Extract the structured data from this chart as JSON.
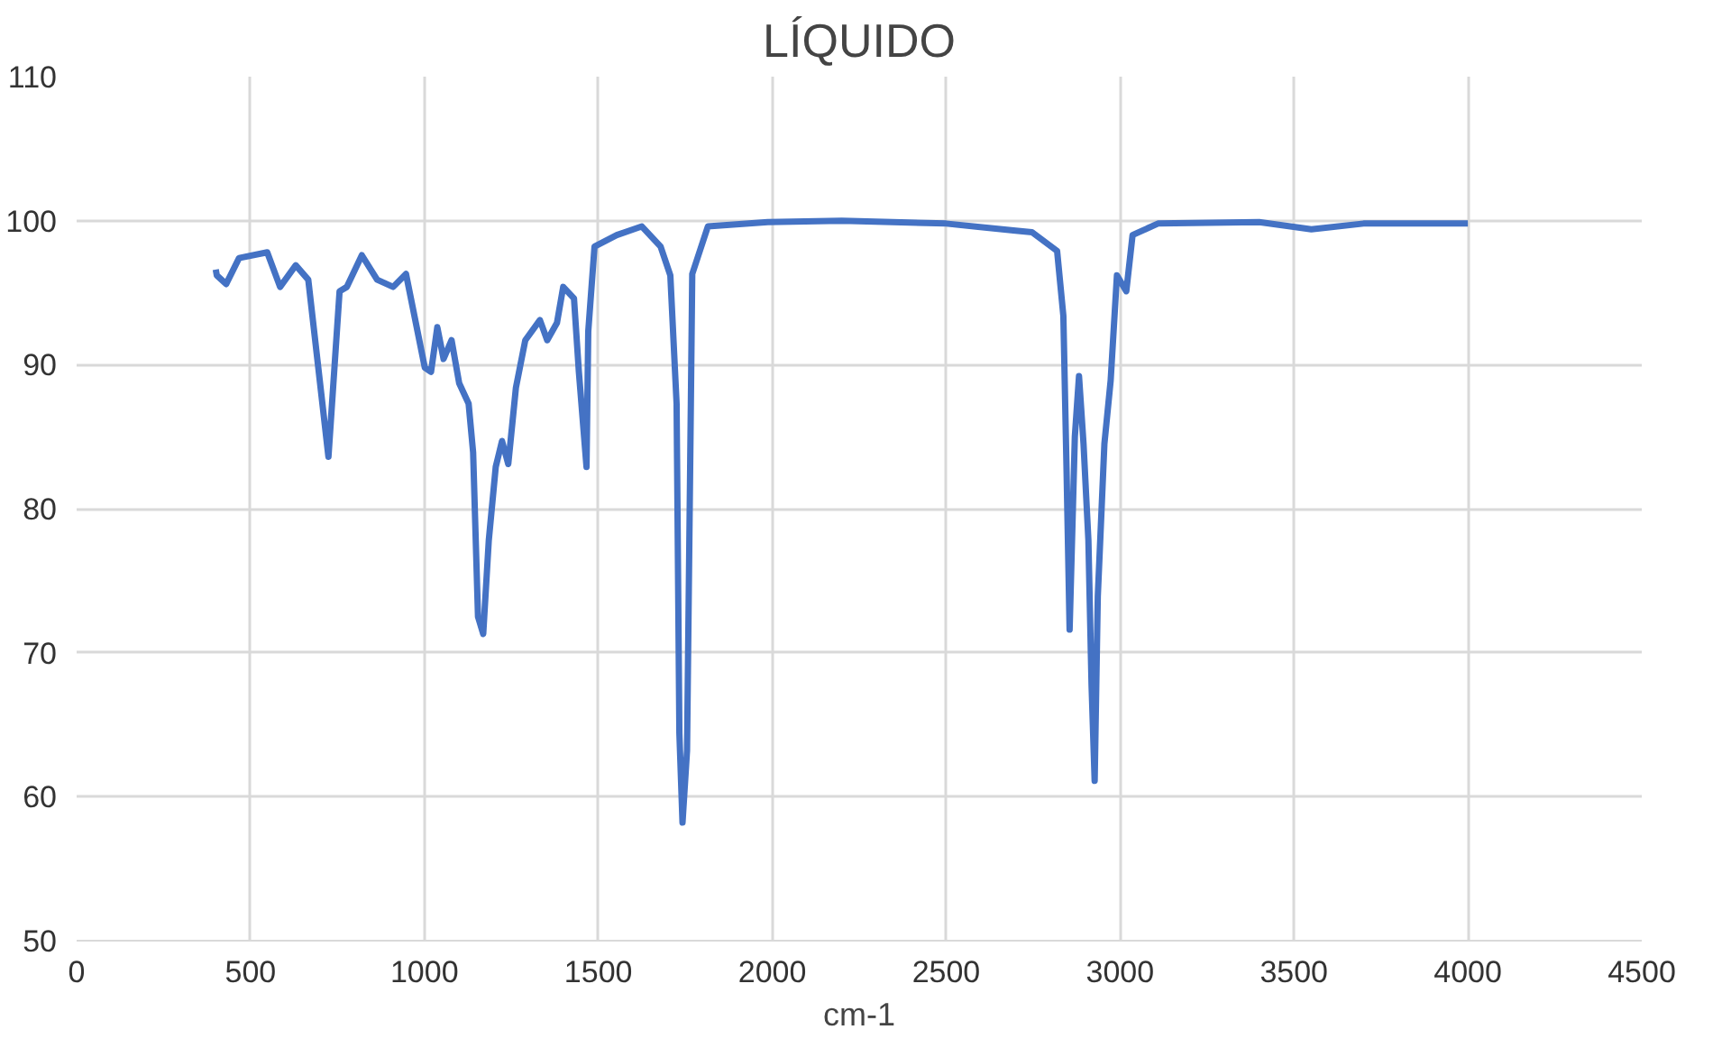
{
  "chart_data": {
    "type": "line",
    "title": "LÍQUIDO",
    "xlabel": "cm-1",
    "xlim": [
      0,
      4500
    ],
    "xticks": [
      0,
      500,
      1000,
      1500,
      2000,
      2500,
      3000,
      3500,
      4000,
      4500
    ],
    "ylim": [
      50,
      110
    ],
    "yticks": [
      50,
      60,
      70,
      80,
      90,
      100,
      110
    ],
    "grid": true,
    "marker": "none",
    "line_style": "solid",
    "series": [
      {
        "color": "#4472c4",
        "x": [
          400,
          403,
          430,
          467,
          548,
          585,
          630,
          666,
          724,
          756,
          777,
          820,
          864,
          910,
          947,
          1001,
          1019,
          1037,
          1055,
          1078,
          1100,
          1127,
          1140,
          1149,
          1154,
          1169,
          1185,
          1205,
          1223,
          1241,
          1263,
          1290,
          1332,
          1353,
          1381,
          1399,
          1430,
          1444,
          1466,
          1471,
          1489,
          1553,
          1625,
          1679,
          1707,
          1725,
          1733,
          1742,
          1755,
          1766,
          1770,
          1815,
          1987,
          2200,
          2500,
          2700,
          2747,
          2819,
          2837,
          2846,
          2855,
          2870,
          2882,
          2895,
          2909,
          2918,
          2927,
          2936,
          2955,
          2973,
          2991,
          3018,
          3036,
          3109,
          3400,
          3550,
          3700,
          4000
        ],
        "values": [
          96.6,
          96.2,
          95.6,
          97.4,
          97.8,
          95.4,
          96.9,
          95.9,
          83.6,
          95.1,
          95.4,
          97.6,
          95.9,
          95.4,
          96.3,
          89.8,
          89.5,
          92.6,
          90.4,
          91.7,
          88.7,
          87.3,
          83.9,
          76.6,
          72.5,
          71.3,
          77.8,
          82.9,
          84.7,
          83.1,
          88.4,
          91.7,
          93.1,
          91.7,
          92.9,
          95.4,
          94.6,
          89.5,
          82.9,
          92.3,
          98.2,
          99.0,
          99.6,
          98.2,
          96.2,
          87.3,
          64.4,
          58.2,
          63.2,
          87.3,
          96.3,
          99.6,
          99.9,
          100.0,
          99.8,
          99.3,
          99.2,
          97.9,
          93.4,
          82.9,
          71.6,
          85.0,
          89.2,
          84.5,
          77.8,
          67.8,
          61.1,
          73.9,
          84.5,
          88.9,
          96.2,
          95.1,
          99.0,
          99.8,
          99.9,
          99.4,
          99.8,
          99.8
        ]
      }
    ]
  }
}
